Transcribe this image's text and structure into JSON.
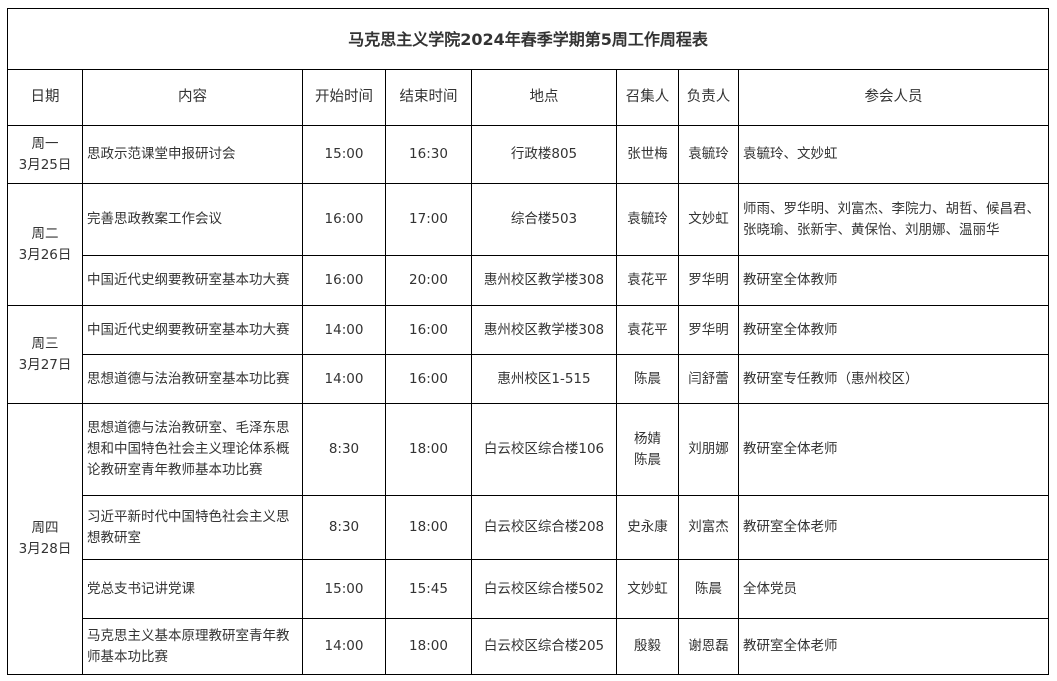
{
  "title": "马克思主义学院2024年春季学期第5周工作周程表",
  "headers": [
    "日期",
    "内容",
    "开始时间",
    "结束时间",
    "地点",
    "召集人",
    "负责人",
    "参会人员"
  ],
  "days": [
    {
      "day": "周一",
      "date": "3月25日"
    },
    {
      "day": "周二",
      "date": "3月26日"
    },
    {
      "day": "周三",
      "date": "3月27日"
    },
    {
      "day": "周四",
      "date": "3月28日"
    }
  ],
  "rows": [
    {
      "content": "思政示范课堂申报研讨会",
      "start": "15:00",
      "end": "16:30",
      "location": "行政楼805",
      "convener": "张世梅",
      "owner": "袁毓玲",
      "attendees": "袁毓玲、文妙虹"
    },
    {
      "content": "完善思政教案工作会议",
      "start": "16:00",
      "end": "17:00",
      "location": "综合楼503",
      "convener": "袁毓玲",
      "owner": "文妙虹",
      "attendees": "师雨、罗华明、刘富杰、李院力、胡哲、候昌君、张晓瑜、张新宇、黄保怡、刘朋娜、温丽华"
    },
    {
      "content": "中国近代史纲要教研室基本功大赛",
      "start": "16:00",
      "end": "20:00",
      "location": "惠州校区教学楼308",
      "convener": "袁花平",
      "owner": "罗华明",
      "attendees": "教研室全体教师"
    },
    {
      "content": "中国近代史纲要教研室基本功大赛",
      "start": "14:00",
      "end": "16:00",
      "location": "惠州校区教学楼308",
      "convener": "袁花平",
      "owner": "罗华明",
      "attendees": "教研室全体教师"
    },
    {
      "content": "思想道德与法治教研室基本功比赛",
      "start": "14:00",
      "end": "16:00",
      "location": "惠州校区1-515",
      "convener": "陈晨",
      "owner": "闫舒蕾",
      "attendees": "教研室专任教师（惠州校区）"
    },
    {
      "content": "思想道德与法治教研室、毛泽东思想和中国特色社会主义理论体系概论教研室青年教师基本功比赛",
      "start": "8:30",
      "end": "18:00",
      "location": "白云校区综合楼106",
      "convener": "杨婧",
      "convener2": "陈晨",
      "owner": "刘朋娜",
      "attendees": "教研室全体老师"
    },
    {
      "content": "习近平新时代中国特色社会主义思想教研室",
      "start": "8:30",
      "end": "18:00",
      "location": "白云校区综合楼208",
      "convener": "史永康",
      "owner": "刘富杰",
      "attendees": "教研室全体老师"
    },
    {
      "content": "党总支书记讲党课",
      "start": "15:00",
      "end": "15:45",
      "location": "白云校区综合楼502",
      "convener": "文妙虹",
      "owner": "陈晨",
      "attendees": "全体党员"
    },
    {
      "content": "马克思主义基本原理教研室青年教师基本功比赛",
      "start": "14:00",
      "end": "18:00",
      "location": "白云校区综合楼205",
      "convener": "殷毅",
      "owner": "谢恩磊",
      "attendees": "教研室全体老师"
    }
  ]
}
